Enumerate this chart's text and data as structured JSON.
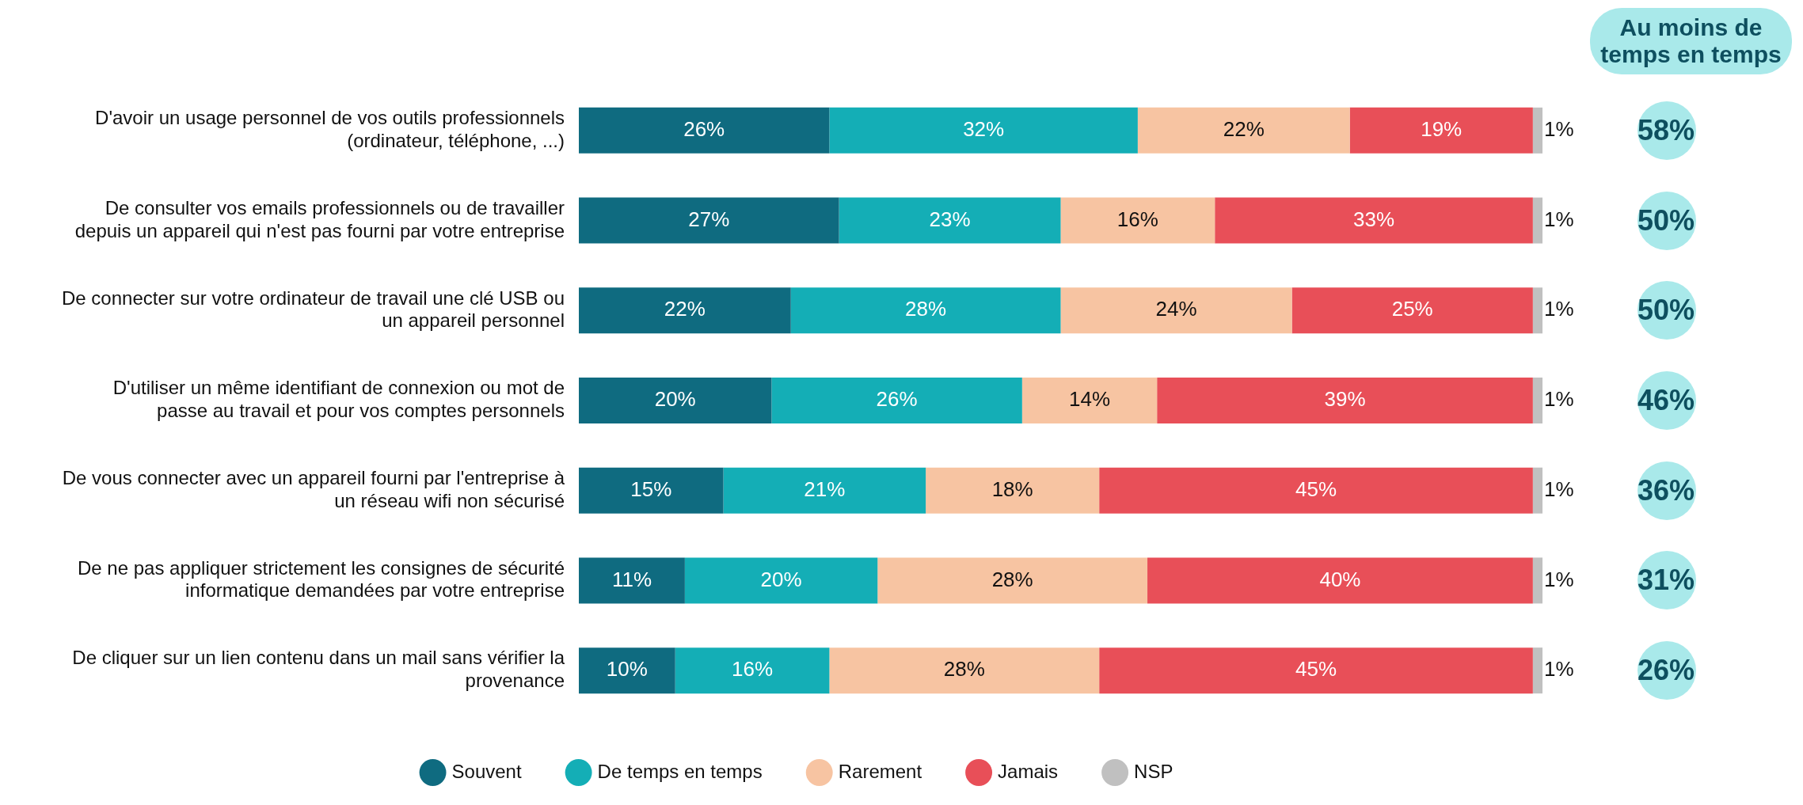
{
  "chart_data": {
    "type": "bar",
    "orientation": "horizontal",
    "stacked": true,
    "legend": "bottom",
    "grid": false,
    "tick_labels": "y",
    "xlim": [
      0,
      100
    ],
    "categories": [
      "D'avoir un usage personnel de vos outils professionnels (ordinateur, téléphone, ...)",
      "De consulter vos emails professionnels ou de travailler depuis un appareil qui n'est pas fourni par votre entreprise",
      "De connecter sur votre ordinateur de travail une clé USB ou un appareil personnel",
      "D'utiliser un même identifiant de connexion ou mot de passe au travail et pour vos comptes personnels",
      "De vous connecter avec un appareil fourni par l'entreprise à un réseau wifi non sécurisé",
      "De ne pas appliquer strictement les consignes de sécurité informatique demandées par votre entreprise",
      "De cliquer sur un lien contenu dans un mail sans vérifier la provenance"
    ],
    "series": [
      {
        "name": "Souvent",
        "color": "#0f6b80",
        "values": [
          26,
          27,
          22,
          20,
          15,
          11,
          10
        ],
        "value_labels": [
          "26%",
          "27%",
          "22%",
          "20%",
          "15%",
          "11%",
          "10%"
        ]
      },
      {
        "name": "De temps en temps",
        "color": "#14aeb6",
        "values": [
          32,
          23,
          28,
          26,
          21,
          20,
          16
        ],
        "value_labels": [
          "32%",
          "23%",
          "28%",
          "26%",
          "21%",
          "20%",
          "16%"
        ]
      },
      {
        "name": "Rarement",
        "color": "#f7c4a2",
        "values": [
          22,
          16,
          24,
          14,
          18,
          28,
          28
        ],
        "value_labels": [
          "22%",
          "16%",
          "24%",
          "14%",
          "18%",
          "28%",
          "28%"
        ]
      },
      {
        "name": "Jamais",
        "color": "#e84f58",
        "values": [
          19,
          33,
          25,
          39,
          45,
          40,
          45
        ],
        "value_labels": [
          "19%",
          "33%",
          "25%",
          "39%",
          "45%",
          "40%",
          "45%"
        ]
      },
      {
        "name": "NSP",
        "color": "#c0c0c0",
        "values": [
          1,
          1,
          1,
          1,
          1,
          1,
          1
        ],
        "value_labels": [
          "1%",
          "1%",
          "1%",
          "1%",
          "1%",
          "1%",
          "1%"
        ]
      }
    ],
    "annotations": [
      "Au moins de temps en temps",
      "58%",
      "50%",
      "50%",
      "46%",
      "36%",
      "31%",
      "26%"
    ]
  }
}
